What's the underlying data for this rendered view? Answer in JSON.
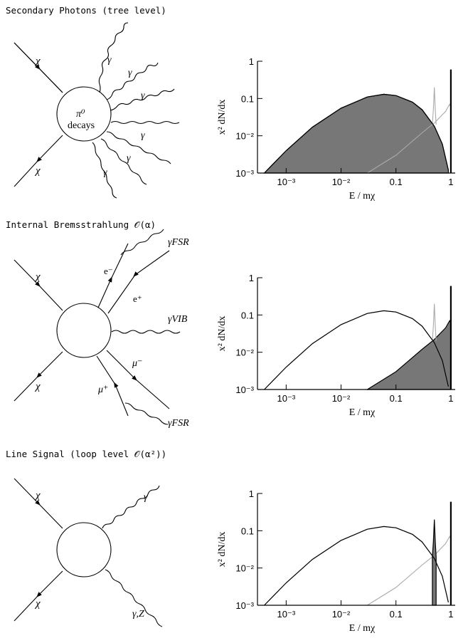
{
  "panels": [
    {
      "title": "Secondary Photons  (tree level)",
      "blob_label": [
        "π⁰",
        "decays"
      ],
      "diagram_labels": [
        "χ",
        "χ",
        "γ",
        "γ",
        "γ",
        "γ",
        "γ",
        "γ"
      ]
    },
    {
      "title": "Internal Bremsstrahlung  𝒪(α)",
      "diagram_labels": [
        "χ",
        "χ",
        "e⁻",
        "e⁺",
        "γFSR",
        "γVIB",
        "μ⁻",
        "μ⁺",
        "γFSR"
      ]
    },
    {
      "title": "Line Signal  (loop level 𝒪(α²))",
      "diagram_labels": [
        "χ",
        "χ",
        "γ",
        "γ,Z"
      ]
    }
  ],
  "chart_data": [
    {
      "type": "area",
      "xlabel": "E / mχ",
      "ylabel": "x² dN/dx",
      "x_scale": "log",
      "y_scale": "log",
      "xlim": [
        0.0003,
        1.2
      ],
      "ylim": [
        0.001,
        1
      ],
      "x_ticks": [
        "10⁻³",
        "10⁻²",
        "0.1",
        "1"
      ],
      "y_ticks": [
        "1",
        "0.1",
        "10⁻²",
        "10⁻³"
      ],
      "highlighted": "secondary photons",
      "series": [
        {
          "x": [
            0.0004,
            0.001,
            0.003,
            0.01,
            0.03,
            0.06,
            0.1,
            0.2,
            0.3,
            0.5,
            0.7,
            0.9
          ],
          "values": [
            0.001,
            0.004,
            0.017,
            0.055,
            0.11,
            0.13,
            0.12,
            0.08,
            0.05,
            0.018,
            0.006,
            0.0012
          ]
        },
        {
          "x": [
            0.03,
            0.1,
            0.3,
            0.5,
            0.8,
            0.95,
            1.0
          ],
          "values": [
            0.001,
            0.003,
            0.012,
            0.022,
            0.045,
            0.07,
            0.06
          ]
        },
        {
          "x": [
            0.46,
            0.48,
            0.5,
            0.52,
            0.54
          ],
          "values": [
            0.02,
            0.05,
            0.2,
            0.05,
            0.02
          ]
        },
        {
          "x": [
            1.0,
            1.0
          ],
          "values": [
            0.001,
            0.6
          ]
        }
      ]
    },
    {
      "type": "area",
      "xlabel": "E / mχ",
      "ylabel": "x² dN/dx",
      "x_scale": "log",
      "y_scale": "log",
      "xlim": [
        0.0003,
        1.2
      ],
      "ylim": [
        0.001,
        1
      ],
      "x_ticks": [
        "10⁻³",
        "10⁻²",
        "0.1",
        "1"
      ],
      "y_ticks": [
        "1",
        "0.1",
        "10⁻²",
        "10⁻³"
      ],
      "highlighted": "internal bremsstrahlung",
      "series": [
        {
          "x": [
            0.0004,
            0.001,
            0.003,
            0.01,
            0.03,
            0.06,
            0.1,
            0.2,
            0.3,
            0.5,
            0.7,
            0.9
          ],
          "values": [
            0.001,
            0.004,
            0.017,
            0.055,
            0.11,
            0.13,
            0.12,
            0.08,
            0.05,
            0.018,
            0.006,
            0.0012
          ]
        },
        {
          "x": [
            0.03,
            0.1,
            0.3,
            0.5,
            0.8,
            0.95,
            1.0
          ],
          "values": [
            0.001,
            0.003,
            0.012,
            0.022,
            0.045,
            0.07,
            0.06
          ]
        },
        {
          "x": [
            0.46,
            0.48,
            0.5,
            0.52,
            0.54
          ],
          "values": [
            0.02,
            0.05,
            0.2,
            0.05,
            0.02
          ]
        },
        {
          "x": [
            1.0,
            1.0
          ],
          "values": [
            0.001,
            0.6
          ]
        }
      ]
    },
    {
      "type": "area",
      "xlabel": "E / mχ",
      "ylabel": "x² dN/dx",
      "x_scale": "log",
      "y_scale": "log",
      "xlim": [
        0.0003,
        1.2
      ],
      "ylim": [
        0.001,
        1
      ],
      "x_ticks": [
        "10⁻³",
        "10⁻²",
        "0.1",
        "1"
      ],
      "y_ticks": [
        "1",
        "0.1",
        "10⁻²",
        "10⁻³"
      ],
      "highlighted": "line signal",
      "series": [
        {
          "x": [
            0.0004,
            0.001,
            0.003,
            0.01,
            0.03,
            0.06,
            0.1,
            0.2,
            0.3,
            0.5,
            0.7,
            0.9
          ],
          "values": [
            0.001,
            0.004,
            0.017,
            0.055,
            0.11,
            0.13,
            0.12,
            0.08,
            0.05,
            0.018,
            0.006,
            0.0012
          ]
        },
        {
          "x": [
            0.03,
            0.1,
            0.3,
            0.5,
            0.8,
            0.95,
            1.0
          ],
          "values": [
            0.001,
            0.003,
            0.012,
            0.022,
            0.045,
            0.07,
            0.06
          ]
        },
        {
          "x": [
            0.46,
            0.48,
            0.5,
            0.52,
            0.54
          ],
          "values": [
            0.02,
            0.05,
            0.2,
            0.05,
            0.02
          ]
        },
        {
          "x": [
            1.0,
            1.0
          ],
          "values": [
            0.001,
            0.6
          ]
        }
      ]
    }
  ]
}
